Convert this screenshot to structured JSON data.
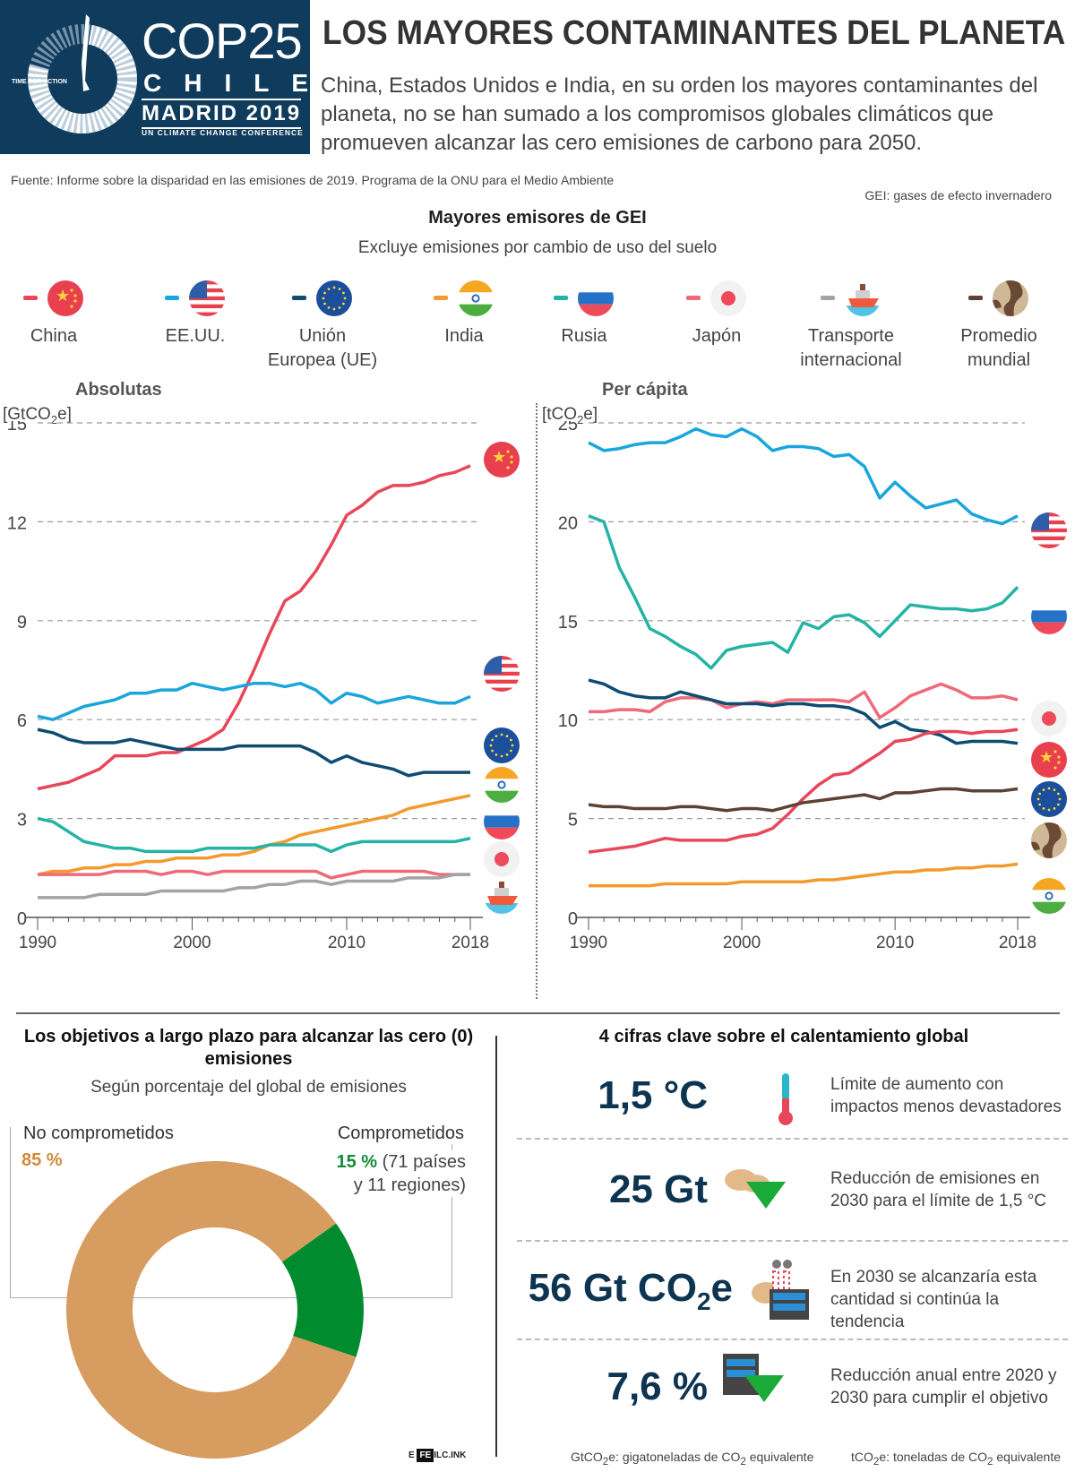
{
  "logo": {
    "event": "COP25",
    "country": "CHILE",
    "host": "MADRID 2019",
    "tagline": "UN CLIMATE CHANGE CONFERENCE",
    "motto": "TIME FOR ACTION"
  },
  "header": {
    "title": "LOS MAYORES CONTAMINANTES DEL PLANETA",
    "subtitle": "China, Estados Unidos e India, en su orden los mayores contaminantes del planeta, no se han sumado a los compromisos globales climáticos que promueven alcanzar las cero emisiones de carbono para 2050."
  },
  "source": "Fuente: Informe sobre la disparidad en las emisiones de 2019. Programa de la ONU para el Medio Ambiente",
  "gei_note": "GEI: gases de efecto invernadero",
  "chart_section": {
    "title": "Mayores emisores de GEI",
    "subtitle": "Excluye emisiones por cambio de uso del suelo"
  },
  "legend": [
    {
      "label": "China",
      "color": "#e8475a",
      "icon": "china-flag-icon"
    },
    {
      "label": "EE.UU.",
      "color": "#1aa6dc",
      "icon": "usa-flag-icon"
    },
    {
      "label": "Unión\nEuropea (UE)",
      "color": "#0e4c72",
      "icon": "eu-flag-icon"
    },
    {
      "label": "India",
      "color": "#f39a2e",
      "icon": "india-flag-icon"
    },
    {
      "label": "Rusia",
      "color": "#25b3a6",
      "icon": "russia-flag-icon"
    },
    {
      "label": "Japón",
      "color": "#ee6a7a",
      "icon": "japan-flag-icon"
    },
    {
      "label": "Transporte\ninternacional",
      "color": "#a3a3a3",
      "icon": "ship-icon"
    },
    {
      "label": "Promedio\nmundial",
      "color": "#5b4235",
      "icon": "globe-icon"
    }
  ],
  "chart_data": [
    {
      "type": "line",
      "title": "Absolutas",
      "ylabel": "[GtCO2e]",
      "xlabel": "",
      "ylim": [
        0,
        15
      ],
      "yticks": [
        0,
        3,
        6,
        9,
        12,
        15
      ],
      "xticks": [
        1990,
        2000,
        2010,
        2018
      ],
      "grid": true,
      "x": [
        1990,
        1991,
        1992,
        1993,
        1994,
        1995,
        1996,
        1997,
        1998,
        1999,
        2000,
        2001,
        2002,
        2003,
        2004,
        2005,
        2006,
        2007,
        2008,
        2009,
        2010,
        2011,
        2012,
        2013,
        2014,
        2015,
        2016,
        2017,
        2018
      ],
      "series": [
        {
          "name": "China",
          "color": "#e8475a",
          "values": [
            3.9,
            4.0,
            4.1,
            4.3,
            4.5,
            4.9,
            4.9,
            4.9,
            5.0,
            5.0,
            5.2,
            5.4,
            5.7,
            6.5,
            7.5,
            8.6,
            9.6,
            9.9,
            10.5,
            11.3,
            12.2,
            12.5,
            12.9,
            13.1,
            13.1,
            13.2,
            13.4,
            13.5,
            13.7
          ]
        },
        {
          "name": "EE.UU.",
          "color": "#1aa6dc",
          "values": [
            6.1,
            6.0,
            6.2,
            6.4,
            6.5,
            6.6,
            6.8,
            6.8,
            6.9,
            6.9,
            7.1,
            7.0,
            6.9,
            7.0,
            7.1,
            7.1,
            7.0,
            7.1,
            6.9,
            6.5,
            6.8,
            6.7,
            6.5,
            6.6,
            6.7,
            6.6,
            6.5,
            6.5,
            6.7
          ]
        },
        {
          "name": "Unión Europea (UE)",
          "color": "#0e4c72",
          "values": [
            5.7,
            5.6,
            5.4,
            5.3,
            5.3,
            5.3,
            5.4,
            5.3,
            5.2,
            5.1,
            5.1,
            5.1,
            5.1,
            5.2,
            5.2,
            5.2,
            5.2,
            5.2,
            5.0,
            4.7,
            4.9,
            4.7,
            4.6,
            4.5,
            4.3,
            4.4,
            4.4,
            4.4,
            4.4
          ]
        },
        {
          "name": "India",
          "color": "#f39a2e",
          "values": [
            1.3,
            1.4,
            1.4,
            1.5,
            1.5,
            1.6,
            1.6,
            1.7,
            1.7,
            1.8,
            1.8,
            1.8,
            1.9,
            1.9,
            2.0,
            2.2,
            2.3,
            2.5,
            2.6,
            2.7,
            2.8,
            2.9,
            3.0,
            3.1,
            3.3,
            3.4,
            3.5,
            3.6,
            3.7
          ]
        },
        {
          "name": "Rusia",
          "color": "#25b3a6",
          "values": [
            3.0,
            2.9,
            2.6,
            2.3,
            2.2,
            2.1,
            2.1,
            2.0,
            2.0,
            2.0,
            2.0,
            2.1,
            2.1,
            2.1,
            2.1,
            2.2,
            2.2,
            2.2,
            2.2,
            2.0,
            2.2,
            2.3,
            2.3,
            2.3,
            2.3,
            2.3,
            2.3,
            2.3,
            2.4
          ]
        },
        {
          "name": "Japón",
          "color": "#ee6a7a",
          "values": [
            1.3,
            1.3,
            1.3,
            1.3,
            1.3,
            1.4,
            1.4,
            1.4,
            1.3,
            1.4,
            1.4,
            1.3,
            1.4,
            1.4,
            1.4,
            1.4,
            1.4,
            1.4,
            1.4,
            1.2,
            1.3,
            1.4,
            1.4,
            1.4,
            1.4,
            1.4,
            1.3,
            1.3,
            1.3
          ]
        },
        {
          "name": "Transporte internacional",
          "color": "#a3a3a3",
          "values": [
            0.6,
            0.6,
            0.6,
            0.6,
            0.7,
            0.7,
            0.7,
            0.7,
            0.8,
            0.8,
            0.8,
            0.8,
            0.8,
            0.9,
            0.9,
            1.0,
            1.0,
            1.1,
            1.1,
            1.0,
            1.1,
            1.1,
            1.1,
            1.1,
            1.2,
            1.2,
            1.2,
            1.3,
            1.3
          ]
        }
      ]
    },
    {
      "type": "line",
      "title": "Per cápita",
      "ylabel": "[tCO2e]",
      "xlabel": "",
      "ylim": [
        0,
        25
      ],
      "yticks": [
        0,
        5,
        10,
        15,
        20,
        25
      ],
      "xticks": [
        1990,
        2000,
        2010,
        2018
      ],
      "grid": true,
      "x": [
        1990,
        1991,
        1992,
        1993,
        1994,
        1995,
        1996,
        1997,
        1998,
        1999,
        2000,
        2001,
        2002,
        2003,
        2004,
        2005,
        2006,
        2007,
        2008,
        2009,
        2010,
        2011,
        2012,
        2013,
        2014,
        2015,
        2016,
        2017,
        2018
      ],
      "series": [
        {
          "name": "EE.UU.",
          "color": "#1aa6dc",
          "values": [
            24.0,
            23.6,
            23.7,
            23.9,
            24.0,
            24.0,
            24.3,
            24.7,
            24.4,
            24.3,
            24.7,
            24.3,
            23.6,
            23.8,
            23.8,
            23.7,
            23.3,
            23.4,
            22.8,
            21.2,
            22.0,
            21.3,
            20.7,
            20.9,
            21.1,
            20.4,
            20.1,
            19.9,
            20.3
          ]
        },
        {
          "name": "Rusia",
          "color": "#25b3a6",
          "values": [
            20.3,
            20.0,
            17.7,
            16.2,
            14.6,
            14.2,
            13.7,
            13.3,
            12.6,
            13.5,
            13.7,
            13.8,
            13.9,
            13.4,
            14.9,
            14.6,
            15.2,
            15.3,
            14.9,
            14.2,
            15.0,
            15.8,
            15.7,
            15.6,
            15.6,
            15.5,
            15.6,
            15.9,
            16.7
          ]
        },
        {
          "name": "Japón",
          "color": "#ee6a7a",
          "values": [
            10.4,
            10.4,
            10.5,
            10.5,
            10.4,
            10.9,
            11.1,
            11.1,
            11.0,
            10.6,
            10.8,
            10.9,
            10.8,
            11.0,
            11.0,
            11.0,
            11.0,
            10.9,
            11.4,
            10.1,
            10.6,
            11.2,
            11.5,
            11.8,
            11.5,
            11.1,
            11.1,
            11.2,
            11.0
          ]
        },
        {
          "name": "Unión Europea (UE)",
          "color": "#0e4c72",
          "values": [
            12.0,
            11.8,
            11.4,
            11.2,
            11.1,
            11.1,
            11.4,
            11.2,
            11.0,
            10.8,
            10.8,
            10.8,
            10.7,
            10.8,
            10.8,
            10.7,
            10.7,
            10.6,
            10.3,
            9.6,
            9.9,
            9.5,
            9.4,
            9.2,
            8.8,
            8.9,
            8.9,
            8.9,
            8.8
          ]
        },
        {
          "name": "China",
          "color": "#e8475a",
          "values": [
            3.3,
            3.4,
            3.5,
            3.6,
            3.8,
            4.0,
            3.9,
            3.9,
            3.9,
            3.9,
            4.1,
            4.2,
            4.5,
            5.2,
            6.0,
            6.7,
            7.2,
            7.3,
            7.8,
            8.3,
            8.9,
            9.0,
            9.3,
            9.4,
            9.4,
            9.3,
            9.4,
            9.4,
            9.5
          ]
        },
        {
          "name": "Promedio mundial",
          "color": "#5b4235",
          "values": [
            5.7,
            5.6,
            5.6,
            5.5,
            5.5,
            5.5,
            5.6,
            5.6,
            5.5,
            5.4,
            5.5,
            5.5,
            5.4,
            5.6,
            5.8,
            5.9,
            6.0,
            6.1,
            6.2,
            6.0,
            6.3,
            6.3,
            6.4,
            6.5,
            6.5,
            6.4,
            6.4,
            6.4,
            6.5
          ]
        },
        {
          "name": "India",
          "color": "#f39a2e",
          "values": [
            1.6,
            1.6,
            1.6,
            1.6,
            1.6,
            1.7,
            1.7,
            1.7,
            1.7,
            1.7,
            1.8,
            1.8,
            1.8,
            1.8,
            1.8,
            1.9,
            1.9,
            2.0,
            2.1,
            2.2,
            2.3,
            2.3,
            2.4,
            2.4,
            2.5,
            2.5,
            2.6,
            2.6,
            2.7
          ]
        }
      ]
    },
    {
      "type": "pie",
      "title": "Los objetivos a largo plazo para alcanzar las cero (0) emisiones",
      "subtitle": "Según porcentaje del global de emisiones",
      "categories": [
        "No comprometidos",
        "Comprometidos"
      ],
      "values": [
        85,
        15
      ],
      "colors": [
        "#d69c60",
        "#008c2e"
      ],
      "donut": true
    }
  ],
  "panels": {
    "abs_title": "Absolutas",
    "abs_unit_pre": "[GtCO",
    "abs_unit_post": "e]",
    "pc_title": "Per cápita",
    "pc_unit_pre": "[tCO",
    "pc_unit_post": "e]",
    "sub2": "2"
  },
  "donut": {
    "title": "Los objetivos a largo plazo para alcanzar las cero (0) emisiones",
    "subtitle": "Según porcentaje del global de emisiones",
    "no_label": "No comprometidos",
    "no_value": "85 %",
    "yes_label": "Comprometidos",
    "yes_value": "15 %",
    "yes_detail_1": "(71 países",
    "yes_detail_2": "y 11 regiones)"
  },
  "key_figures": {
    "title": "4 cifras clave sobre el calentamiento global",
    "items": [
      {
        "value": "1,5 °C",
        "desc": "Límite de aumento con impactos menos devastadores",
        "icon": "thermometer-icon"
      },
      {
        "value": "25 Gt",
        "desc": "Reducción de emisiones en 2030 para el límite de 1,5 °C",
        "icon": "cloud-down-icon"
      },
      {
        "value_pre": "56 Gt CO",
        "value_sub": "2",
        "value_post": "e",
        "desc": "En 2030 se alcanzaría esta cantidad si continúa la tendencia",
        "icon": "factory-icon"
      },
      {
        "value": "7,6 %",
        "desc": "Reducción anual entre 2020 y 2030 para cumplir el objetivo",
        "icon": "building-down-icon"
      }
    ]
  },
  "footer": {
    "credit_a": "E",
    "credit_b": "FE",
    "credit_c": "ILC.INK",
    "gt_pre": "GtCO",
    "gt_mid": "e: gigatoneladas de CO",
    "gt_post": " equivalente",
    "t_pre": "tCO",
    "t_mid": "e: toneladas de CO",
    "t_post": " equivalente",
    "sub2": "2"
  }
}
